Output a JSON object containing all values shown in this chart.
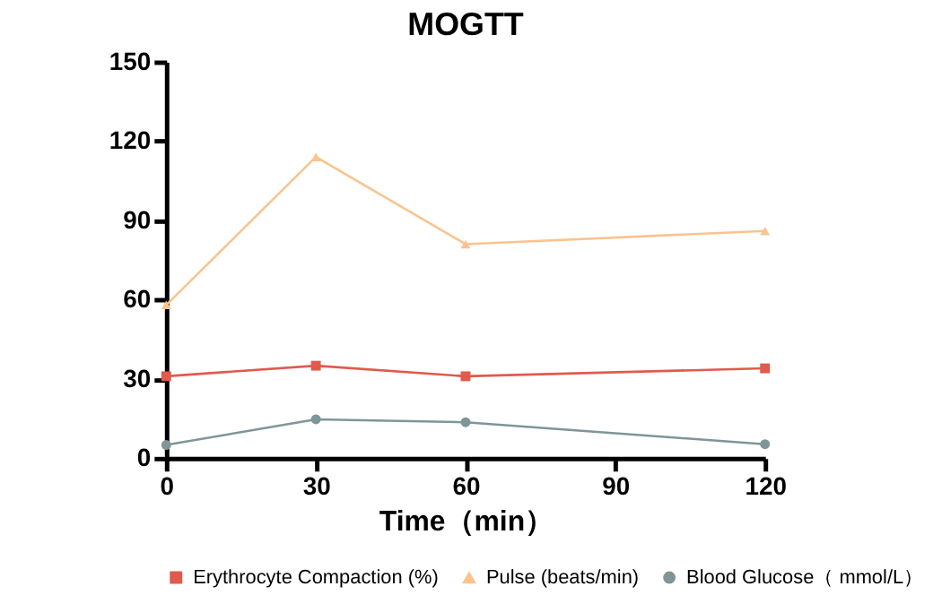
{
  "chart_data": {
    "type": "line",
    "title": "MOGTT",
    "xlabel": "Time（min）",
    "x": [
      0,
      30,
      60,
      120
    ],
    "series": [
      {
        "name": "Erythrocyte Compaction (%)",
        "color": "#e05a4e",
        "marker": "square",
        "values": [
          31,
          35,
          31,
          34
        ]
      },
      {
        "name": "Pulse (beats/min)",
        "color": "#f9c48f",
        "marker": "triangle",
        "values": [
          58,
          114,
          81,
          86
        ]
      },
      {
        "name": "Blood Glucose（ mmol/L）",
        "color": "#7f9597",
        "marker": "circle",
        "values": [
          5,
          14.7,
          13.6,
          5.3
        ]
      }
    ],
    "xlim": [
      0,
      120
    ],
    "xticks": [
      0,
      30,
      60,
      90,
      120
    ],
    "ylim": [
      0,
      150
    ],
    "yticks": [
      0,
      30,
      60,
      90,
      120,
      150
    ],
    "grid": false,
    "legend": "bottom",
    "line_style": "solid"
  }
}
